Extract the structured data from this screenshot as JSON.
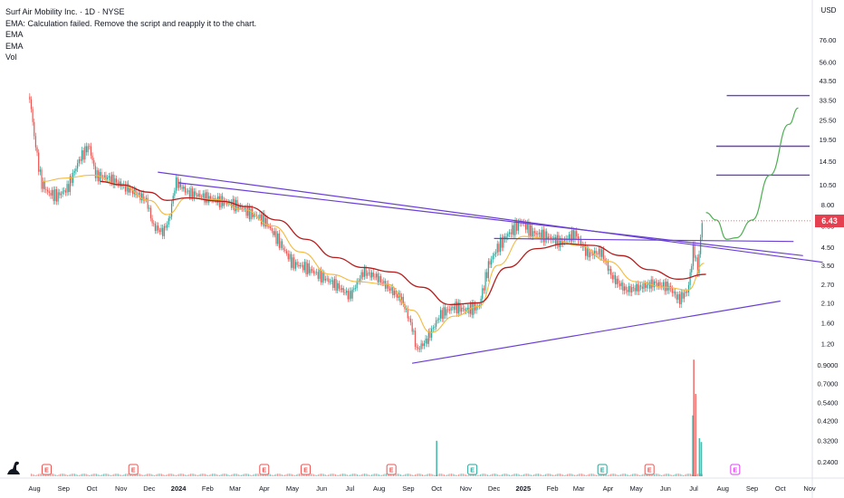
{
  "header": {
    "title": "Surf Air Mobility Inc. · 1D · NYSE",
    "indicators": [
      "EMA: Calculation failed. Remove the script and reapply it to the chart.",
      "EMA",
      "EMA",
      "Vol"
    ]
  },
  "price_scale": {
    "currency": "USD",
    "last_price": "6.43",
    "last_price_color": "#e5404f",
    "ticks": [
      "76.00",
      "56.00",
      "43.50",
      "33.50",
      "25.50",
      "19.50",
      "14.50",
      "10.50",
      "8.00",
      "6.00",
      "4.50",
      "3.50",
      "2.70",
      "2.10",
      "1.60",
      "1.20",
      "0.9000",
      "0.7000",
      "0.5400",
      "0.4200",
      "0.3200",
      "0.2400"
    ]
  },
  "chart_data": {
    "type": "candlestick",
    "x_label_ticks": [
      "Aug",
      "Sep",
      "Oct",
      "Nov",
      "Dec",
      "2024",
      "Feb",
      "Mar",
      "Apr",
      "May",
      "Jun",
      "Jul",
      "Aug",
      "Sep",
      "Oct",
      "Nov",
      "Dec",
      "2025",
      "Feb",
      "Mar",
      "Apr",
      "May",
      "Jun",
      "Jul",
      "Aug",
      "Sep",
      "Oct",
      "Nov"
    ],
    "y_scale": "log",
    "price_path": [
      [
        "2023-07-27",
        35.0
      ],
      [
        "2023-08-01",
        20.0
      ],
      [
        "2023-08-08",
        11.0
      ],
      [
        "2023-08-15",
        9.5
      ],
      [
        "2023-08-25",
        9.0
      ],
      [
        "2023-09-05",
        10.0
      ],
      [
        "2023-09-18",
        15.0
      ],
      [
        "2023-09-28",
        18.0
      ],
      [
        "2023-10-05",
        12.0
      ],
      [
        "2023-10-20",
        11.5
      ],
      [
        "2023-11-01",
        10.5
      ],
      [
        "2023-11-15",
        9.5
      ],
      [
        "2023-11-28",
        8.5
      ],
      [
        "2023-12-05",
        6.0
      ],
      [
        "2023-12-15",
        5.5
      ],
      [
        "2023-12-22",
        6.5
      ],
      [
        "2023-12-29",
        11.0
      ],
      [
        "2024-01-10",
        9.5
      ],
      [
        "2024-01-25",
        9.0
      ],
      [
        "2024-02-10",
        8.5
      ],
      [
        "2024-03-01",
        8.0
      ],
      [
        "2024-03-20",
        7.0
      ],
      [
        "2024-04-01",
        6.5
      ],
      [
        "2024-04-15",
        5.0
      ],
      [
        "2024-05-01",
        3.6
      ],
      [
        "2024-05-15",
        3.4
      ],
      [
        "2024-06-01",
        3.0
      ],
      [
        "2024-06-15",
        2.7
      ],
      [
        "2024-07-01",
        2.3
      ],
      [
        "2024-07-15",
        3.2
      ],
      [
        "2024-07-29",
        3.0
      ],
      [
        "2024-08-10",
        2.6
      ],
      [
        "2024-08-25",
        2.2
      ],
      [
        "2024-09-05",
        1.5
      ],
      [
        "2024-09-10",
        1.1
      ],
      [
        "2024-09-20",
        1.25
      ],
      [
        "2024-10-05",
        1.8
      ],
      [
        "2024-10-20",
        2.0
      ],
      [
        "2024-11-01",
        1.9
      ],
      [
        "2024-11-15",
        2.0
      ],
      [
        "2024-11-25",
        3.5
      ],
      [
        "2024-12-05",
        4.5
      ],
      [
        "2024-12-15",
        5.3
      ],
      [
        "2024-12-30",
        6.4
      ],
      [
        "2025-01-10",
        5.5
      ],
      [
        "2025-01-25",
        5.2
      ],
      [
        "2025-02-10",
        4.8
      ],
      [
        "2025-02-25",
        5.4
      ],
      [
        "2025-03-10",
        4.1
      ],
      [
        "2025-03-25",
        4.2
      ],
      [
        "2025-04-05",
        3.0
      ],
      [
        "2025-04-20",
        2.5
      ],
      [
        "2025-05-05",
        2.6
      ],
      [
        "2025-05-20",
        2.75
      ],
      [
        "2025-06-05",
        2.6
      ],
      [
        "2025-06-15",
        2.2
      ],
      [
        "2025-06-25",
        2.5
      ],
      [
        "2025-07-01",
        4.6
      ],
      [
        "2025-07-05",
        3.2
      ],
      [
        "2025-07-10",
        6.43
      ]
    ],
    "ema_fast": [
      [
        "2023-08-10",
        11.0
      ],
      [
        "2023-09-01",
        11.5
      ],
      [
        "2023-10-01",
        12.0
      ],
      [
        "2023-11-01",
        10.5
      ],
      [
        "2023-12-01",
        8.5
      ],
      [
        "2023-12-20",
        7.0
      ],
      [
        "2024-01-10",
        8.8
      ],
      [
        "2024-02-10",
        8.6
      ],
      [
        "2024-03-10",
        7.5
      ],
      [
        "2024-04-10",
        6.0
      ],
      [
        "2024-05-10",
        4.2
      ],
      [
        "2024-06-10",
        3.1
      ],
      [
        "2024-07-10",
        2.8
      ],
      [
        "2024-08-10",
        2.7
      ],
      [
        "2024-09-05",
        1.9
      ],
      [
        "2024-09-25",
        1.4
      ],
      [
        "2024-10-20",
        1.75
      ],
      [
        "2024-11-15",
        2.0
      ],
      [
        "2024-12-05",
        3.5
      ],
      [
        "2025-01-01",
        5.2
      ],
      [
        "2025-02-01",
        5.0
      ],
      [
        "2025-03-01",
        4.6
      ],
      [
        "2025-04-01",
        3.7
      ],
      [
        "2025-05-01",
        2.8
      ],
      [
        "2025-06-01",
        2.6
      ],
      [
        "2025-06-25",
        2.5
      ],
      [
        "2025-07-12",
        3.6
      ]
    ],
    "ema_slow": [
      [
        "2023-10-10",
        11.0
      ],
      [
        "2023-11-01",
        10.5
      ],
      [
        "2023-12-01",
        9.5
      ],
      [
        "2023-12-20",
        8.5
      ],
      [
        "2024-01-10",
        8.8
      ],
      [
        "2024-02-15",
        8.4
      ],
      [
        "2024-03-15",
        7.8
      ],
      [
        "2024-04-15",
        6.5
      ],
      [
        "2024-05-15",
        5.0
      ],
      [
        "2024-06-15",
        3.9
      ],
      [
        "2024-07-15",
        3.4
      ],
      [
        "2024-08-15",
        3.2
      ],
      [
        "2024-09-15",
        2.6
      ],
      [
        "2024-10-15",
        2.05
      ],
      [
        "2024-11-15",
        2.1
      ],
      [
        "2024-12-15",
        3.4
      ],
      [
        "2025-01-15",
        4.4
      ],
      [
        "2025-02-15",
        4.7
      ],
      [
        "2025-03-15",
        4.6
      ],
      [
        "2025-04-15",
        4.0
      ],
      [
        "2025-05-15",
        3.3
      ],
      [
        "2025-06-15",
        2.9
      ],
      [
        "2025-07-14",
        3.1
      ]
    ],
    "volume_spikes": [
      [
        "2024-10-01",
        0.28
      ],
      [
        "2025-06-30",
        0.48
      ],
      [
        "2025-07-01",
        0.92
      ],
      [
        "2025-07-03",
        0.65
      ],
      [
        "2025-07-07",
        0.3
      ],
      [
        "2025-07-09",
        0.27
      ]
    ],
    "earnings_markers": [
      {
        "date": "2023-08-14",
        "label": "E"
      },
      {
        "date": "2023-11-14",
        "label": "E"
      },
      {
        "date": "2024-04-01",
        "label": "E"
      },
      {
        "date": "2024-05-15",
        "label": "E"
      },
      {
        "date": "2024-08-14",
        "label": "E"
      },
      {
        "date": "2024-11-08",
        "label": "E"
      },
      {
        "date": "2025-03-26",
        "label": "E"
      },
      {
        "date": "2025-05-15",
        "label": "E"
      },
      {
        "date": "2025-08-14",
        "label": "E"
      }
    ],
    "drawings": {
      "upper_trendline": [
        [
          "2023-12-10",
          12.5
        ],
        [
          "2025-11-15",
          3.65
        ]
      ],
      "upper_trendline_2": [
        [
          "2024-01-01",
          10.8
        ],
        [
          "2025-10-25",
          4.0
        ]
      ],
      "support_trendline": [
        [
          "2024-09-05",
          0.92
        ],
        [
          "2025-10-01",
          2.15
        ]
      ],
      "horizontal_5": [
        [
          "2024-12-01",
          5.05
        ],
        [
          "2025-10-15",
          4.85
        ]
      ],
      "resistance_levels": [
        [
          [
            "2025-07-25",
            12.0
          ],
          [
            "2025-11-01",
            12.0
          ]
        ],
        [
          [
            "2025-07-25",
            17.8
          ],
          [
            "2025-11-01",
            17.8
          ]
        ],
        [
          [
            "2025-08-05",
            35.5
          ],
          [
            "2025-11-01",
            35.5
          ]
        ]
      ],
      "projection_curve": [
        [
          "2025-07-14",
          7.2
        ],
        [
          "2025-07-25",
          6.5
        ],
        [
          "2025-08-05",
          5.0
        ],
        [
          "2025-08-15",
          5.1
        ],
        [
          "2025-09-01",
          6.5
        ],
        [
          "2025-09-20",
          12.0
        ],
        [
          "2025-10-10",
          24.0
        ],
        [
          "2025-10-20",
          30.0
        ]
      ]
    },
    "colors": {
      "up": "#26a69a",
      "down": "#ef5350",
      "ema_fast": "#f5b93b",
      "ema_slow": "#b71c1c",
      "trendline": "#6a3fd6",
      "projection": "#4caf50",
      "volume_up": "#26a69a",
      "volume_down": "#ef5350",
      "earnings_red": "#ef5350",
      "earnings_green": "#26a69a",
      "earnings_future": "#e040fb"
    }
  }
}
